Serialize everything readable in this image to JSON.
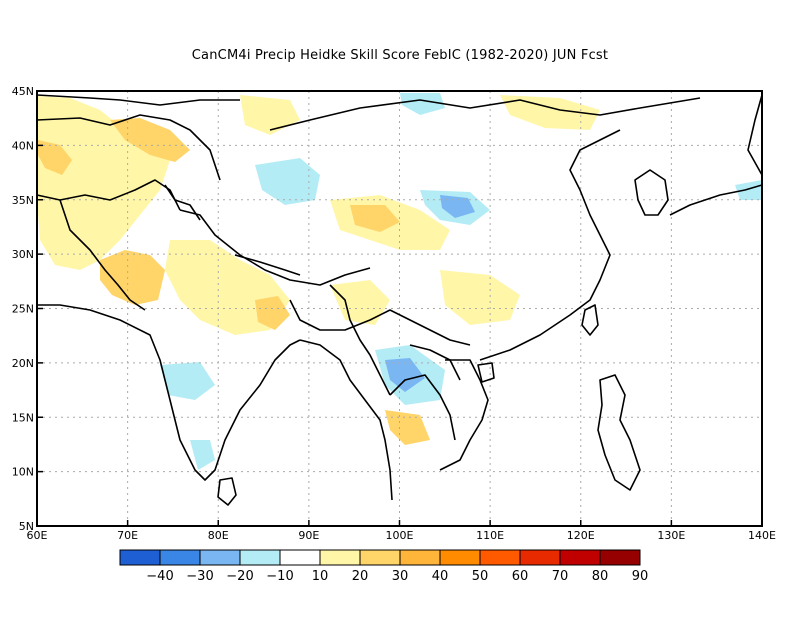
{
  "title": "CanCM4i Precip Heidke Skill Score FebIC (1982-2020) JUN Fcst",
  "map": {
    "lon_range": [
      60,
      140
    ],
    "lat_range": [
      5,
      45
    ],
    "lon_ticks": [
      "60E",
      "70E",
      "80E",
      "90E",
      "100E",
      "110E",
      "120E",
      "130E",
      "140E"
    ],
    "lat_ticks": [
      "45N",
      "40N",
      "35N",
      "30N",
      "25N",
      "20N",
      "15N",
      "10N",
      "5N"
    ],
    "grid": "dotted"
  },
  "colorbar": {
    "labels": [
      "-40",
      "-30",
      "-20",
      "-10",
      "10",
      "20",
      "30",
      "40",
      "50",
      "60",
      "70",
      "80",
      "90"
    ],
    "colors": [
      "#1e5fd4",
      "#3a86e6",
      "#79b6f2",
      "#b4ecf6",
      "#ffffff",
      "#fff6a8",
      "#ffd468",
      "#ffb43a",
      "#ff8c00",
      "#ff5a00",
      "#e82a00",
      "#c00000",
      "#960000"
    ]
  },
  "regions": [
    {
      "name": "yellow-patch-afghanistan",
      "color": "#ffd468"
    },
    {
      "name": "yellow-patch-pakistan",
      "color": "#fff6a8"
    },
    {
      "name": "blue-patch-tibet",
      "color": "#b4ecf6"
    },
    {
      "name": "blue-patch-sw-china",
      "color": "#79b6f2"
    },
    {
      "name": "blue-patch-indochina",
      "color": "#79b6f2"
    }
  ]
}
